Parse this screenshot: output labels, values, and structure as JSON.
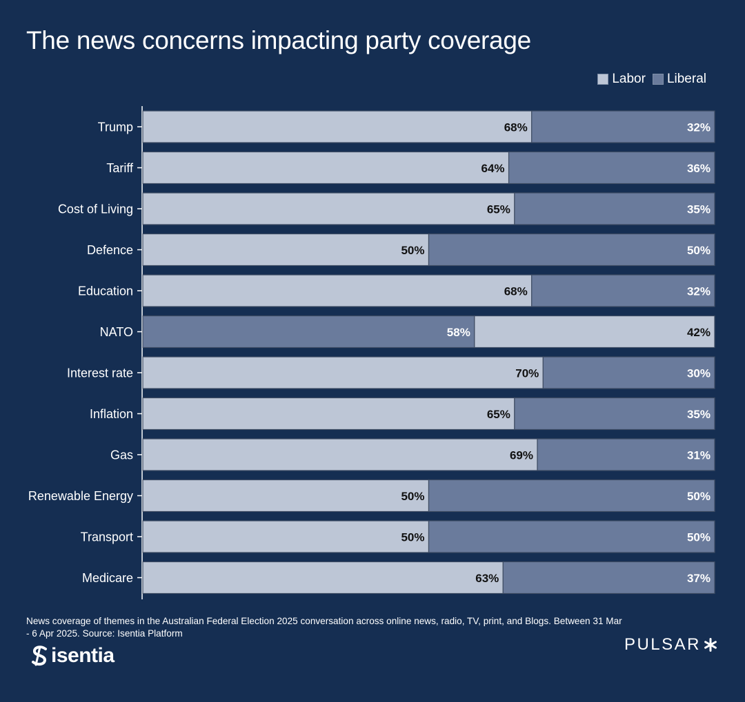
{
  "title": "The news concerns impacting party coverage",
  "legend": {
    "labor_label": "Labor",
    "liberal_label": "Liberal"
  },
  "colors": {
    "background": "#152e52",
    "labor": "#bdc6d6",
    "liberal": "#6a7b9c"
  },
  "chart_data": {
    "type": "bar",
    "orientation": "horizontal",
    "stacked": true,
    "percent": true,
    "title": "The news concerns impacting party coverage",
    "legend_position": "top-right",
    "xlim": [
      0,
      100
    ],
    "categories": [
      "Trump",
      "Tariff",
      "Cost of Living",
      "Defence",
      "Education",
      "NATO",
      "Interest rate",
      "Inflation",
      "Gas",
      "Renewable Energy",
      "Transport",
      "Medicare"
    ],
    "rows": [
      {
        "segments": [
          {
            "series": "Labor",
            "value": 68,
            "label": "68%"
          },
          {
            "series": "Liberal",
            "value": 32,
            "label": "32%"
          }
        ]
      },
      {
        "segments": [
          {
            "series": "Labor",
            "value": 64,
            "label": "64%"
          },
          {
            "series": "Liberal",
            "value": 36,
            "label": "36%"
          }
        ]
      },
      {
        "segments": [
          {
            "series": "Labor",
            "value": 65,
            "label": "65%"
          },
          {
            "series": "Liberal",
            "value": 35,
            "label": "35%"
          }
        ]
      },
      {
        "segments": [
          {
            "series": "Labor",
            "value": 50,
            "label": "50%"
          },
          {
            "series": "Liberal",
            "value": 50,
            "label": "50%"
          }
        ]
      },
      {
        "segments": [
          {
            "series": "Labor",
            "value": 68,
            "label": "68%"
          },
          {
            "series": "Liberal",
            "value": 32,
            "label": "32%"
          }
        ]
      },
      {
        "segments": [
          {
            "series": "Liberal",
            "value": 58,
            "label": "58%"
          },
          {
            "series": "Labor",
            "value": 42,
            "label": "42%"
          }
        ]
      },
      {
        "segments": [
          {
            "series": "Labor",
            "value": 70,
            "label": "70%"
          },
          {
            "series": "Liberal",
            "value": 30,
            "label": "30%"
          }
        ]
      },
      {
        "segments": [
          {
            "series": "Labor",
            "value": 65,
            "label": "65%"
          },
          {
            "series": "Liberal",
            "value": 35,
            "label": "35%"
          }
        ]
      },
      {
        "segments": [
          {
            "series": "Labor",
            "value": 69,
            "label": "69%"
          },
          {
            "series": "Liberal",
            "value": 31,
            "label": "31%"
          }
        ]
      },
      {
        "segments": [
          {
            "series": "Labor",
            "value": 50,
            "label": "50%"
          },
          {
            "series": "Liberal",
            "value": 50,
            "label": "50%"
          }
        ]
      },
      {
        "segments": [
          {
            "series": "Labor",
            "value": 50,
            "label": "50%"
          },
          {
            "series": "Liberal",
            "value": 50,
            "label": "50%"
          }
        ]
      },
      {
        "segments": [
          {
            "series": "Labor",
            "value": 63,
            "label": "63%"
          },
          {
            "series": "Liberal",
            "value": 37,
            "label": "37%"
          }
        ]
      }
    ]
  },
  "footnote": "News coverage of themes in the Australian Federal Election 2025 conversation across online news, radio, TV, print, and Blogs. Between 31 Mar - 6 Apr 2025. Source: Isentia Platform",
  "brand_left": {
    "name": "isentia",
    "icon": "isentia-s-logo-icon"
  },
  "brand_right": {
    "name": "PULSAR",
    "icon": "asterisk-icon"
  }
}
